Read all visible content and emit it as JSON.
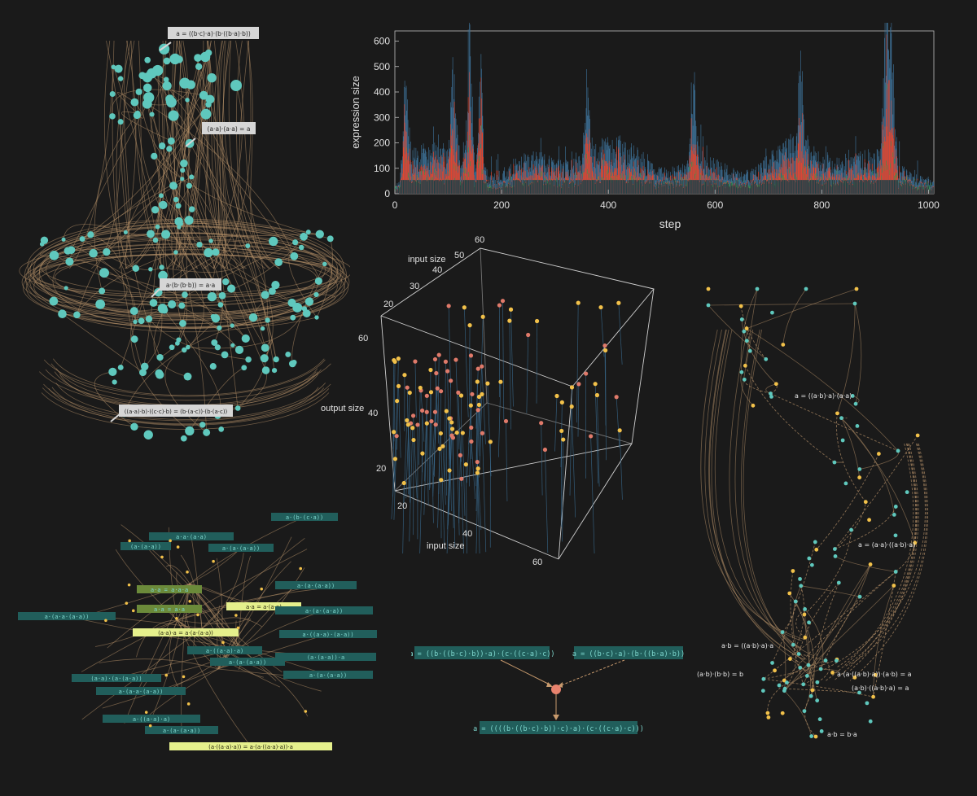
{
  "hist": {
    "ylabel": "expression size",
    "xlabel": "step",
    "yticks": [
      "0",
      "100",
      "200",
      "300",
      "400",
      "500",
      "600"
    ],
    "xticks": [
      "0",
      "200",
      "400",
      "600",
      "800",
      "1000"
    ]
  },
  "chart_data": {
    "type": "bar",
    "xlabel": "step",
    "ylabel": "expression size",
    "xlim": [
      0,
      1010
    ],
    "ylim": [
      0,
      640
    ],
    "series": [
      {
        "name": "",
        "color": "#3c6e93",
        "values_note": "",
        "peaks": [
          [
            140,
            580
          ],
          [
            920,
            600
          ],
          [
            930,
            560
          ],
          [
            110,
            430
          ],
          [
            160,
            410
          ],
          [
            20,
            300
          ],
          [
            360,
            300
          ],
          [
            560,
            300
          ],
          [
            760,
            300
          ]
        ]
      },
      {
        "name": "",
        "color": "#e8452c"
      },
      {
        "name": "",
        "color": "#2e7d4c"
      }
    ]
  },
  "scatter3d": {
    "axis_input_top": "input size",
    "axis_input_bottom": "input size",
    "axis_output": "output size",
    "ticks_top": [
      "20",
      "30",
      "40",
      "50",
      "60"
    ],
    "ticks_output": [
      "20",
      "40",
      "60"
    ],
    "ticks_bottom": [
      "20",
      "40",
      "60"
    ]
  },
  "graph1": {
    "labels": [
      "a = ((b·c)·a)·(b·((b·a)·b))",
      "(a·a)·(a·a) = a",
      "a·(b·(b·b)) = a·a",
      "((a·a)·b)·((c·c)·b) = (b·(a·c))·(b·(a·c))"
    ]
  },
  "graph2": {
    "labels": [
      "a = ((a·b)·a)·(a·a)",
      "a = (a·a)·((a·b)·a)",
      "a·b = ((a·b)·a)·a",
      "(a·b)·(b·b) = b",
      "a·(a·((a·b)·a))·(a·b) = a",
      "(a·b)·((a·b)·a) = a",
      "a·b = b·a"
    ]
  },
  "graph3": {
    "labels": [
      "a·(b·(c·a))",
      "a·a·(a·a)",
      "(a·(a·a))",
      "a·(a·(a·a))",
      "a·a = a·a·a",
      "a·a = a·a",
      "a·a = a·(a·a)",
      "(a·a)·a = a·(a·(a·a))",
      "a·(a·(a·a))",
      "a·(a·a·(a·a))",
      "a·(a·(a·a))",
      "a·((a·a)·(a·a))",
      "(a·(a·a))·a",
      "a·((a·a)·a)",
      "a·(a·(a·a))",
      "a·(a·(a·a))",
      "(a·a)·(a·(a·a))",
      "(a·((a·a)·a)) = a·(a·((a·a)·a))·a"
    ]
  },
  "proof": {
    "left": "a = ((b·((b·c)·b))·a)·(c·((c·a)·c))",
    "right": "a = ((b·c)·a)·(b·((b·a)·b))",
    "bottom": "a = ((((b·((b·c)·b))·c)·a)·(c·((c·a)·c)))"
  }
}
